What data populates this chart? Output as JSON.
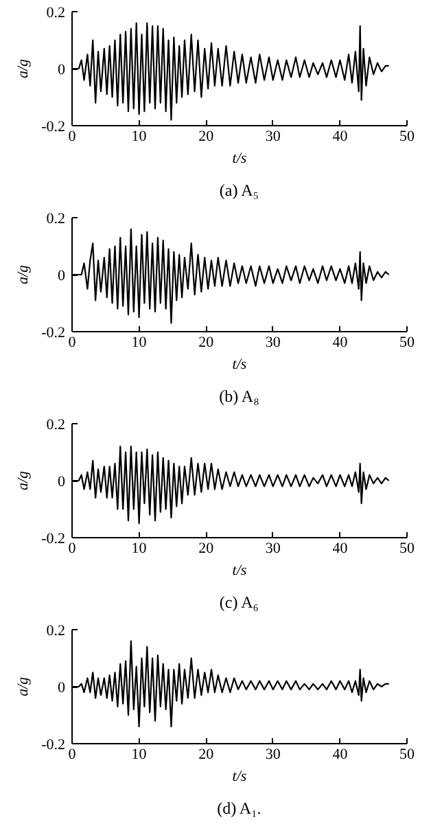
{
  "chart_data": [
    {
      "type": "line",
      "xlabel": "t/s",
      "ylabel": "a/g",
      "annotations": [
        "(a) A₅"
      ],
      "xlim": [
        0,
        50
      ],
      "ylim": [
        -0.2,
        0.2
      ],
      "xticks": [
        0,
        10,
        20,
        30,
        40,
        50
      ],
      "yticks": [
        -0.2,
        0,
        0.2
      ],
      "grid": false,
      "series": [
        {
          "color": "#000000",
          "x": [
            0,
            1,
            1.4,
            1.8,
            2.3,
            2.7,
            3.1,
            3.5,
            3.9,
            4.3,
            4.8,
            5.2,
            5.6,
            6.0,
            6.4,
            6.8,
            7.2,
            7.6,
            8.0,
            8.4,
            8.8,
            9.2,
            9.6,
            10.0,
            10.4,
            10.8,
            11.2,
            11.6,
            12.0,
            12.4,
            12.8,
            13.2,
            13.6,
            14.0,
            14.4,
            14.8,
            15.2,
            15.6,
            16.0,
            16.4,
            16.8,
            17.3,
            17.8,
            18.3,
            18.8,
            19.3,
            19.8,
            20.3,
            20.8,
            21.3,
            21.8,
            22.4,
            23,
            23.6,
            24.2,
            24.8,
            25.4,
            26,
            26.7,
            27.4,
            28,
            28.7,
            29.4,
            30,
            30.7,
            31.4,
            32,
            32.7,
            33.4,
            34,
            34.7,
            35.4,
            36,
            36.7,
            37.4,
            38,
            38.7,
            39.4,
            40,
            40.7,
            41.3,
            41.8,
            42.3,
            42.8,
            43.0,
            43.2,
            43.5,
            43.9,
            44.4,
            45,
            45.6,
            46.2,
            46.8,
            47.3
          ],
          "values": [
            0,
            0,
            0.03,
            -0.04,
            0.05,
            -0.06,
            0.1,
            -0.12,
            0.06,
            -0.08,
            0.07,
            -0.09,
            0.08,
            -0.1,
            0.1,
            -0.13,
            0.12,
            -0.12,
            0.13,
            -0.15,
            0.14,
            -0.14,
            0.16,
            -0.16,
            0.12,
            -0.15,
            0.16,
            -0.12,
            0.15,
            -0.14,
            0.15,
            -0.12,
            0.14,
            -0.15,
            0.1,
            -0.18,
            0.11,
            -0.12,
            0.08,
            -0.1,
            0.1,
            -0.09,
            0.12,
            -0.08,
            0.1,
            -0.1,
            0.07,
            -0.07,
            0.09,
            -0.06,
            0.07,
            -0.06,
            0.08,
            -0.06,
            0.06,
            -0.05,
            0.05,
            -0.05,
            0.04,
            -0.05,
            0.05,
            -0.04,
            0.04,
            -0.04,
            0.03,
            -0.04,
            0.03,
            -0.03,
            0.04,
            -0.03,
            0.03,
            -0.03,
            0.02,
            -0.02,
            0.02,
            -0.03,
            0.03,
            -0.03,
            0.03,
            -0.04,
            0.05,
            -0.05,
            0.06,
            -0.08,
            0.15,
            -0.11,
            0.07,
            -0.06,
            0.04,
            -0.02,
            0.02,
            -0.01,
            0.01,
            0.01
          ]
        }
      ]
    },
    {
      "type": "line",
      "xlabel": "t/s",
      "ylabel": "a/g",
      "annotations": [
        "(b) A₈"
      ],
      "xlim": [
        0,
        50
      ],
      "ylim": [
        -0.2,
        0.2
      ],
      "xticks": [
        0,
        10,
        20,
        30,
        40,
        50
      ],
      "yticks": [
        -0.2,
        0,
        0.2
      ],
      "grid": false,
      "series": [
        {
          "color": "#000000",
          "x": [
            0,
            1,
            1.4,
            1.8,
            2.3,
            2.7,
            3.1,
            3.5,
            3.9,
            4.3,
            4.8,
            5.2,
            5.6,
            6.0,
            6.4,
            6.8,
            7.2,
            7.6,
            8.0,
            8.4,
            8.8,
            9.2,
            9.6,
            10.0,
            10.4,
            10.8,
            11.2,
            11.6,
            12.0,
            12.4,
            12.8,
            13.2,
            13.6,
            14.0,
            14.4,
            14.8,
            15.2,
            15.6,
            16.0,
            16.4,
            16.8,
            17.3,
            17.8,
            18.3,
            18.8,
            19.3,
            19.8,
            20.3,
            20.8,
            21.3,
            21.8,
            22.4,
            23,
            23.6,
            24.2,
            24.8,
            25.4,
            26,
            26.7,
            27.4,
            28,
            28.7,
            29.4,
            30,
            30.7,
            31.4,
            32,
            32.7,
            33.4,
            34,
            34.7,
            35.4,
            36,
            36.7,
            37.4,
            38,
            38.7,
            39.4,
            40,
            40.7,
            41.3,
            41.8,
            42.3,
            42.8,
            43.0,
            43.2,
            43.5,
            43.9,
            44.4,
            45,
            45.6,
            46.2,
            46.8,
            47.3
          ],
          "values": [
            0,
            0,
            0,
            0.04,
            -0.05,
            0.05,
            0.11,
            -0.09,
            0.05,
            -0.06,
            0.06,
            -0.08,
            0.09,
            -0.1,
            0.1,
            -0.12,
            0.13,
            -0.11,
            0.1,
            -0.14,
            0.16,
            -0.13,
            0.1,
            -0.15,
            0.14,
            -0.1,
            0.15,
            -0.12,
            0.11,
            -0.13,
            0.13,
            -0.1,
            0.12,
            -0.12,
            0.09,
            -0.17,
            0.08,
            -0.09,
            0.07,
            -0.08,
            0.06,
            -0.05,
            0.11,
            -0.07,
            0.07,
            -0.06,
            0.06,
            -0.05,
            0.05,
            -0.04,
            0.06,
            -0.04,
            0.05,
            -0.04,
            0.04,
            -0.03,
            0.03,
            -0.03,
            0.03,
            -0.04,
            0.03,
            -0.03,
            0.03,
            -0.03,
            0.02,
            -0.03,
            0.03,
            -0.02,
            0.03,
            -0.03,
            0.03,
            -0.02,
            0.02,
            -0.03,
            0.03,
            -0.02,
            0.03,
            -0.02,
            0.02,
            -0.03,
            0.03,
            -0.03,
            0.04,
            -0.05,
            0.08,
            -0.09,
            0.04,
            -0.03,
            0.03,
            -0.02,
            0.01,
            -0.01,
            0.01,
            0
          ]
        }
      ]
    },
    {
      "type": "line",
      "xlabel": "t/s",
      "ylabel": "a/g",
      "annotations": [
        "(c) A₆"
      ],
      "xlim": [
        0,
        50
      ],
      "ylim": [
        -0.2,
        0.2
      ],
      "xticks": [
        0,
        10,
        20,
        30,
        40,
        50
      ],
      "yticks": [
        -0.2,
        0,
        0.2
      ],
      "grid": false,
      "series": [
        {
          "color": "#000000",
          "x": [
            0,
            1,
            1.4,
            1.8,
            2.3,
            2.7,
            3.1,
            3.5,
            3.9,
            4.3,
            4.8,
            5.2,
            5.6,
            6.0,
            6.4,
            6.8,
            7.2,
            7.6,
            8.0,
            8.4,
            8.8,
            9.2,
            9.6,
            10.0,
            10.4,
            10.8,
            11.2,
            11.6,
            12.0,
            12.4,
            12.8,
            13.2,
            13.6,
            14.0,
            14.4,
            14.8,
            15.2,
            15.6,
            16.0,
            16.4,
            16.8,
            17.3,
            17.8,
            18.3,
            18.8,
            19.3,
            19.8,
            20.3,
            20.8,
            21.3,
            21.8,
            22.4,
            23,
            23.6,
            24.2,
            24.8,
            25.4,
            26,
            26.7,
            27.4,
            28,
            28.7,
            29.4,
            30,
            30.7,
            31.4,
            32,
            32.7,
            33.4,
            34,
            34.7,
            35.4,
            36,
            36.7,
            37.4,
            38,
            38.7,
            39.4,
            40,
            40.7,
            41.3,
            41.8,
            42.3,
            42.8,
            43.0,
            43.2,
            43.5,
            43.9,
            44.4,
            45,
            45.6,
            46.2,
            46.8,
            47.3
          ],
          "values": [
            0,
            0,
            0.02,
            -0.03,
            0.03,
            -0.03,
            0.07,
            -0.06,
            0.04,
            -0.04,
            0.05,
            -0.06,
            0.05,
            -0.06,
            0.06,
            -0.1,
            0.12,
            -0.1,
            0.1,
            -0.14,
            0.12,
            -0.1,
            0.1,
            -0.15,
            0.1,
            -0.08,
            0.11,
            -0.12,
            0.09,
            -0.14,
            0.1,
            -0.11,
            0.08,
            -0.1,
            0.07,
            -0.13,
            0.06,
            -0.09,
            0.05,
            -0.08,
            0.05,
            -0.05,
            0.08,
            -0.05,
            0.06,
            -0.04,
            0.06,
            -0.03,
            0.06,
            -0.03,
            0.04,
            -0.03,
            0.03,
            -0.02,
            0.03,
            -0.02,
            0.02,
            -0.02,
            0.02,
            -0.02,
            0.02,
            -0.02,
            0.02,
            -0.02,
            0.02,
            -0.02,
            0.02,
            -0.02,
            0.02,
            -0.02,
            0.02,
            -0.02,
            0.01,
            -0.01,
            0.02,
            -0.02,
            0.02,
            -0.02,
            0.02,
            -0.02,
            0.02,
            -0.02,
            0.03,
            -0.04,
            0.06,
            -0.08,
            0.03,
            -0.03,
            0.02,
            -0.01,
            0.01,
            -0.01,
            0.01,
            0
          ]
        }
      ]
    },
    {
      "type": "line",
      "xlabel": "t/s",
      "ylabel": "a/g",
      "annotations": [
        "(d) A₁."
      ],
      "xlim": [
        0,
        50
      ],
      "ylim": [
        -0.2,
        0.2
      ],
      "xticks": [
        0,
        10,
        20,
        30,
        40,
        50
      ],
      "yticks": [
        -0.2,
        0,
        0.2
      ],
      "grid": false,
      "series": [
        {
          "color": "#000000",
          "x": [
            0,
            1,
            1.4,
            1.8,
            2.3,
            2.7,
            3.1,
            3.5,
            3.9,
            4.3,
            4.8,
            5.2,
            5.6,
            6.0,
            6.4,
            6.8,
            7.2,
            7.6,
            8.0,
            8.4,
            8.8,
            9.2,
            9.6,
            10.0,
            10.4,
            10.8,
            11.2,
            11.6,
            12.0,
            12.4,
            12.8,
            13.2,
            13.6,
            14.0,
            14.4,
            14.8,
            15.2,
            15.6,
            16.0,
            16.4,
            16.8,
            17.3,
            17.8,
            18.3,
            18.8,
            19.3,
            19.8,
            20.3,
            20.8,
            21.3,
            21.8,
            22.4,
            23,
            23.6,
            24.2,
            24.8,
            25.4,
            26,
            26.7,
            27.4,
            28,
            28.7,
            29.4,
            30,
            30.7,
            31.4,
            32,
            32.7,
            33.4,
            34,
            34.7,
            35.4,
            36,
            36.7,
            37.4,
            38,
            38.7,
            39.4,
            40,
            40.7,
            41.3,
            41.8,
            42.3,
            42.8,
            43.0,
            43.2,
            43.5,
            43.9,
            44.4,
            45,
            45.6,
            46.2,
            46.8,
            47.3
          ],
          "values": [
            0,
            0,
            0.01,
            -0.02,
            0.03,
            -0.02,
            0.05,
            -0.04,
            0.03,
            -0.03,
            0.03,
            -0.04,
            0.04,
            -0.05,
            0.05,
            -0.07,
            0.08,
            -0.06,
            0.09,
            -0.1,
            0.16,
            -0.08,
            0.07,
            -0.14,
            0.1,
            -0.07,
            0.14,
            -0.09,
            0.1,
            -0.12,
            0.11,
            -0.07,
            0.08,
            -0.08,
            0.06,
            -0.14,
            0.06,
            -0.05,
            0.08,
            -0.06,
            0.06,
            -0.04,
            0.1,
            -0.04,
            0.06,
            -0.03,
            0.05,
            -0.02,
            0.06,
            -0.02,
            0.04,
            -0.02,
            0.03,
            -0.02,
            0.03,
            -0.01,
            0.02,
            -0.01,
            0.02,
            -0.01,
            0.02,
            -0.01,
            0.02,
            -0.01,
            0.02,
            -0.01,
            0.02,
            -0.01,
            0.02,
            -0.01,
            0.01,
            -0.01,
            0.01,
            -0.01,
            0.01,
            -0.01,
            0.02,
            -0.01,
            0.02,
            -0.01,
            0.02,
            -0.02,
            0.02,
            -0.03,
            0.06,
            -0.05,
            0.03,
            -0.02,
            0.02,
            -0.01,
            0.01,
            0,
            0.01,
            0.01
          ]
        }
      ]
    }
  ]
}
